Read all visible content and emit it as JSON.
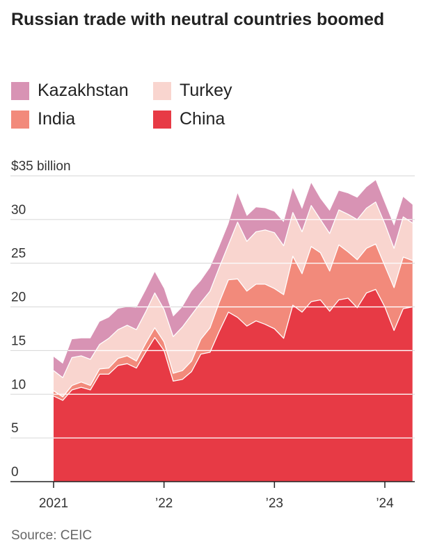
{
  "title": "Russian trade with neutral countries boomed",
  "source": "Source: CEIC",
  "colors": {
    "Kazakhstan": "#d893b4",
    "Turkey": "#f9d5cf",
    "India": "#f28a7b",
    "China": "#e73a45",
    "grid": "#ffffff",
    "axis": "#222222"
  },
  "chart_data": {
    "type": "area",
    "stacked": true,
    "title": "Russian trade with neutral countries boomed",
    "ylabel": "",
    "y_unit_label": "$35 billion",
    "ylim": [
      0,
      35
    ],
    "y_ticks": [
      0,
      5,
      10,
      15,
      20,
      25,
      30,
      35
    ],
    "y_tick_labels": [
      "0",
      "5",
      "10",
      "15",
      "20",
      "25",
      "30",
      "$35 billion"
    ],
    "x_tick_labels": [
      {
        "label": "2021",
        "x": "2021-01"
      },
      {
        "label": "’22",
        "x": "2022-01"
      },
      {
        "label": "’23",
        "x": "2023-01"
      },
      {
        "label": "’24",
        "x": "2024-01"
      }
    ],
    "legend_position": "top-left",
    "legend": [
      {
        "name": "Kazakhstan",
        "color": "#d893b4"
      },
      {
        "name": "Turkey",
        "color": "#f9d5cf"
      },
      {
        "name": "India",
        "color": "#f28a7b"
      },
      {
        "name": "China",
        "color": "#e73a45"
      }
    ],
    "x": [
      "2021-01",
      "2021-02",
      "2021-03",
      "2021-04",
      "2021-05",
      "2021-06",
      "2021-07",
      "2021-08",
      "2021-09",
      "2021-10",
      "2021-11",
      "2021-12",
      "2022-01",
      "2022-02",
      "2022-03",
      "2022-04",
      "2022-05",
      "2022-06",
      "2022-07",
      "2022-08",
      "2022-09",
      "2022-10",
      "2022-11",
      "2022-12",
      "2023-01",
      "2023-02",
      "2023-03",
      "2023-04",
      "2023-05",
      "2023-06",
      "2023-07",
      "2023-08",
      "2023-09",
      "2023-10",
      "2023-11",
      "2023-12",
      "2024-01",
      "2024-02",
      "2024-03",
      "2024-04"
    ],
    "series": [
      {
        "name": "China",
        "values": [
          9.8,
          9.3,
          10.5,
          10.8,
          10.5,
          12.3,
          12.3,
          13.3,
          13.5,
          13.0,
          14.8,
          16.5,
          15.0,
          11.5,
          11.7,
          12.6,
          14.6,
          14.8,
          17.2,
          19.4,
          18.8,
          17.8,
          18.4,
          18.0,
          17.5,
          16.4,
          20.2,
          19.4,
          20.6,
          20.8,
          19.5,
          20.8,
          21.0,
          19.9,
          21.6,
          22.0,
          20.0,
          17.3,
          19.8,
          20.0
        ]
      },
      {
        "name": "India",
        "values": [
          0.6,
          0.4,
          0.5,
          0.6,
          0.5,
          0.6,
          0.7,
          0.8,
          0.9,
          0.8,
          1.0,
          1.1,
          1.0,
          0.9,
          1.0,
          1.2,
          1.7,
          2.8,
          3.3,
          3.7,
          4.4,
          4.0,
          4.2,
          4.6,
          4.6,
          5.0,
          5.6,
          4.4,
          6.3,
          5.4,
          4.6,
          6.3,
          5.3,
          5.5,
          5.1,
          5.2,
          4.7,
          4.9,
          5.9,
          5.3
        ]
      },
      {
        "name": "Turkey",
        "values": [
          2.3,
          2.2,
          3.2,
          3.0,
          3.0,
          2.8,
          3.4,
          3.3,
          3.5,
          3.6,
          3.6,
          4.0,
          3.7,
          4.2,
          5.0,
          5.3,
          4.2,
          4.2,
          4.0,
          4.0,
          6.5,
          5.7,
          6.0,
          6.2,
          6.4,
          5.6,
          5.0,
          4.8,
          4.7,
          3.8,
          4.3,
          4.0,
          4.3,
          4.6,
          4.6,
          4.8,
          4.8,
          4.5,
          4.6,
          4.3
        ]
      },
      {
        "name": "Kazakhstan",
        "values": [
          1.6,
          1.6,
          2.1,
          2.0,
          2.4,
          2.6,
          2.4,
          2.4,
          2.1,
          2.5,
          2.5,
          2.4,
          2.4,
          2.3,
          2.3,
          2.7,
          2.5,
          2.7,
          2.4,
          2.4,
          3.3,
          2.9,
          2.8,
          2.5,
          2.4,
          2.7,
          2.8,
          2.6,
          2.6,
          2.4,
          2.6,
          2.2,
          2.4,
          2.5,
          2.4,
          2.5,
          2.4,
          2.6,
          2.3,
          2.1
        ]
      }
    ]
  }
}
